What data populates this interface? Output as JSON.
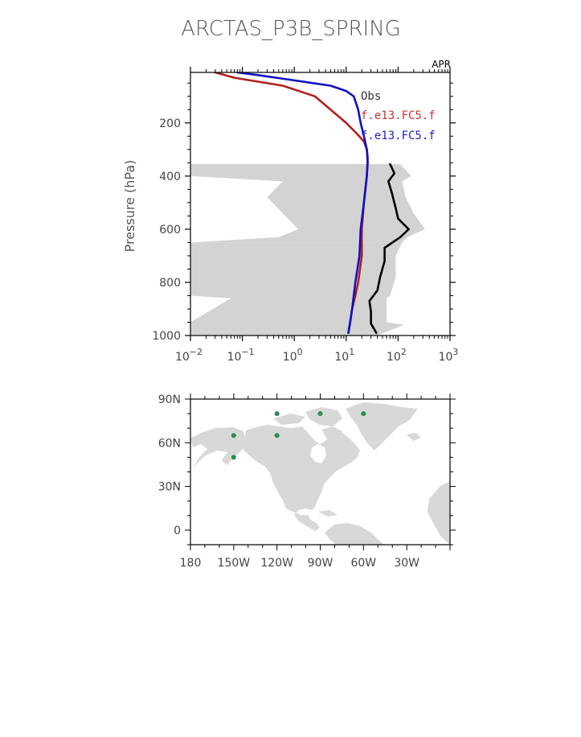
{
  "title": "ARCTAS_P3B_SPRING",
  "chart_data": [
    {
      "type": "line",
      "annotation": "APR",
      "ylabel": "Pressure (hPa)",
      "xlabel": "",
      "xscale": "log",
      "xlim": [
        0.01,
        1000
      ],
      "ylim": [
        1000,
        10
      ],
      "x_tick_labels": [
        {
          "base": "10",
          "exp": "−2"
        },
        {
          "base": "10",
          "exp": "−1"
        },
        {
          "base": "10",
          "exp": "0"
        },
        {
          "base": "10",
          "exp": "1"
        },
        {
          "base": "10",
          "exp": "2"
        },
        {
          "base": "10",
          "exp": "3"
        }
      ],
      "y_ticks": [
        200,
        400,
        600,
        800,
        1000
      ],
      "legend": {
        "placement": "top-right",
        "entries": [
          {
            "label": "Obs",
            "color": "#333333"
          },
          {
            "label": "f.e13.FC5.f",
            "color": "#d03030"
          },
          {
            "label": "f.e13.FC5.f",
            "color": "#2020c0"
          }
        ]
      },
      "obs_range": {
        "color": "#d3d3d3",
        "segments": [
          {
            "pressure": [
              355,
              400,
              420,
              480,
              540,
              600,
              630,
              650
            ],
            "low": [
              0.01,
              0.01,
              0.6,
              0.3,
              0.6,
              1.2,
              0.5,
              0.01
            ],
            "high": [
              110,
              180,
              120,
              140,
              200,
              330,
              150,
              120
            ]
          },
          {
            "pressure": [
              650,
              700,
              780,
              850,
              860,
              950
            ],
            "low": [
              0.01,
              0.01,
              0.01,
              0.01,
              0.06,
              0.01
            ],
            "high": [
              120,
              90,
              90,
              70,
              60,
              60
            ]
          },
          {
            "pressure": [
              950,
              960,
              1000
            ],
            "low": [
              0.01,
              0.01,
              0.01
            ],
            "high": [
              60,
              130,
              40
            ]
          }
        ]
      },
      "series": [
        {
          "name": "Obs",
          "color": "#000000",
          "pressure": [
            355,
            390,
            420,
            460,
            520,
            560,
            600,
            630,
            670,
            720,
            780,
            830,
            870,
            910,
            955,
            990
          ],
          "values": [
            70,
            85,
            65,
            75,
            90,
            100,
            160,
            110,
            55,
            55,
            45,
            40,
            28,
            30,
            30,
            38
          ]
        },
        {
          "name": "f.e13.FC5.f",
          "color": "#b02020",
          "pressure": [
            10,
            30,
            60,
            100,
            150,
            200,
            240,
            270,
            300,
            330,
            400,
            500,
            600,
            650,
            700,
            800,
            850,
            900,
            950,
            990
          ],
          "values": [
            0.03,
            0.07,
            0.6,
            2.5,
            5,
            10,
            16,
            22,
            25,
            26,
            25,
            22,
            20,
            20,
            20,
            17,
            15,
            13,
            12,
            11
          ]
        },
        {
          "name": "f.e13.FC5.f",
          "color": "#1010c0",
          "pressure": [
            10,
            20,
            40,
            60,
            80,
            100,
            150,
            200,
            250,
            300,
            350,
            400,
            500,
            600,
            700,
            800,
            900,
            990
          ],
          "values": [
            0.08,
            0.2,
            1,
            5,
            10,
            14,
            17,
            19,
            22,
            25,
            26,
            25,
            22,
            19,
            18,
            15,
            13,
            11
          ]
        }
      ]
    },
    {
      "type": "scatter",
      "xlim": [
        -180,
        0
      ],
      "ylim": [
        -10,
        90
      ],
      "x_tick_labels": [
        "180",
        "150W",
        "120W",
        "90W",
        "60W",
        "30W"
      ],
      "y_tick_labels": [
        "90N",
        "60N",
        "30N",
        "0"
      ],
      "land_color": "#d8d8d8",
      "marker_color": "#2e8b57",
      "points": [
        {
          "lon": -150,
          "lat": 65
        },
        {
          "lon": -150,
          "lat": 50
        },
        {
          "lon": -120,
          "lat": 80
        },
        {
          "lon": -120,
          "lat": 65
        },
        {
          "lon": -90,
          "lat": 80
        },
        {
          "lon": -60,
          "lat": 80
        }
      ]
    }
  ]
}
